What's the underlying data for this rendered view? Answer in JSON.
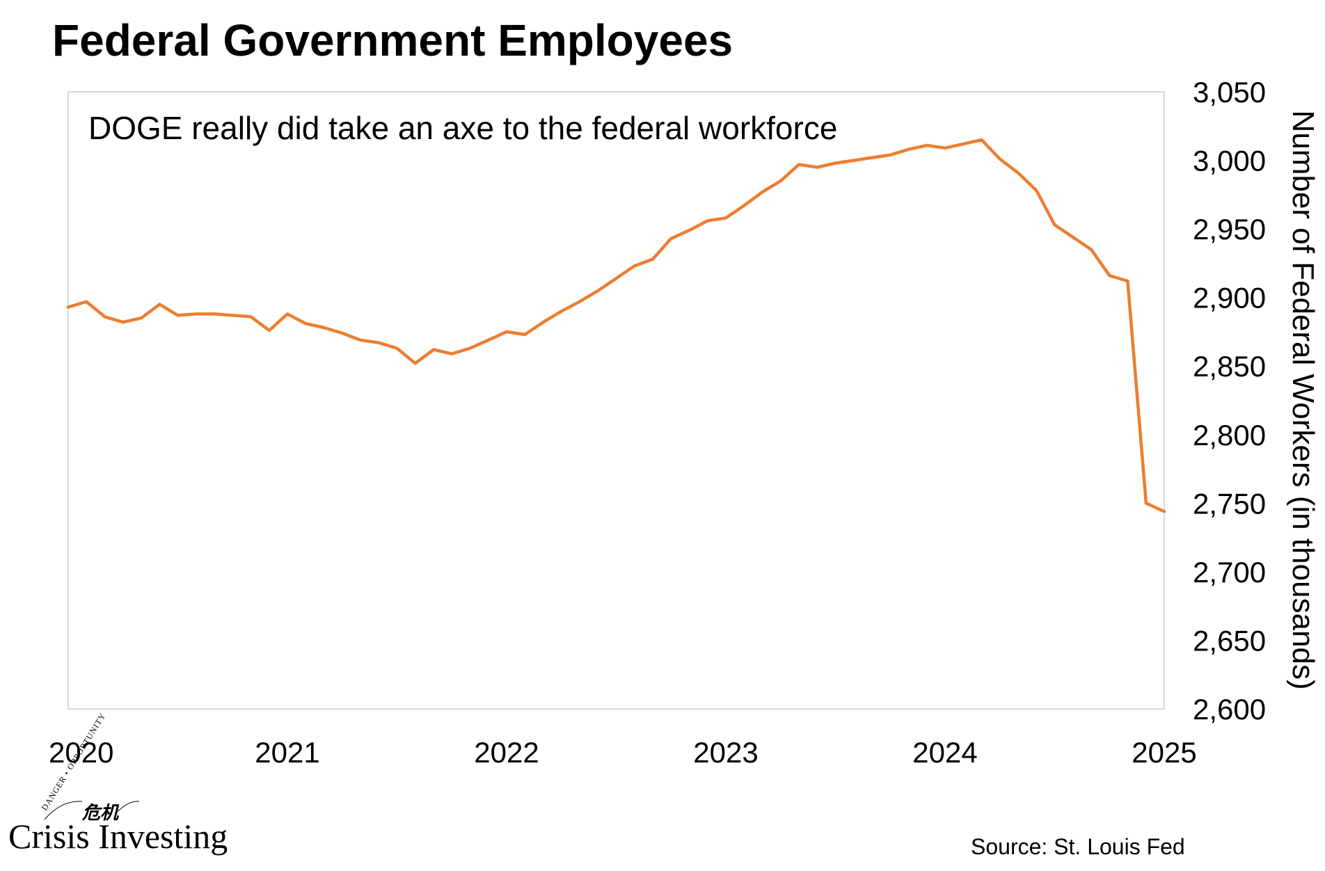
{
  "title": "Federal Government Employees",
  "source": "Source: St. Louis Fed",
  "logo": {
    "name": "Crisis Investing",
    "tagline": "DANGER • OPPORTUNITY",
    "glyphs": "危机"
  },
  "colors": {
    "line": "#ED7D31",
    "frame": "#D9D9D9",
    "text": "#000000"
  },
  "chart_data": {
    "type": "line",
    "title": "Federal Government Employees",
    "annotation": "DOGE really did take an axe to the federal workforce",
    "xlabel": "",
    "ylabel": "Number of Federal Workers (in thousands)",
    "y_axis_side": "right",
    "grid": false,
    "xlim": [
      2020,
      2025
    ],
    "ylim": [
      2600,
      3050
    ],
    "x_ticks": [
      2020,
      2021,
      2022,
      2023,
      2024,
      2025
    ],
    "x_tick_labels": [
      "2020",
      "2021",
      "2022",
      "2023",
      "2024",
      "2025"
    ],
    "y_ticks": [
      2600,
      2650,
      2700,
      2750,
      2800,
      2850,
      2900,
      2950,
      3000,
      3050
    ],
    "y_tick_labels": [
      "2,600",
      "2,650",
      "2,700",
      "2,750",
      "2,800",
      "2,850",
      "2,900",
      "2,950",
      "3,000",
      "3,050"
    ],
    "series": [
      {
        "name": "Federal Government Employees",
        "x": [
          2020.0,
          2020.083,
          2020.167,
          2020.25,
          2020.333,
          2020.417,
          2020.5,
          2020.583,
          2020.667,
          2020.75,
          2020.833,
          2020.917,
          2021.0,
          2021.083,
          2021.167,
          2021.25,
          2021.333,
          2021.417,
          2021.5,
          2021.583,
          2021.667,
          2021.75,
          2021.833,
          2021.917,
          2022.0,
          2022.083,
          2022.167,
          2022.25,
          2022.333,
          2022.417,
          2022.5,
          2022.583,
          2022.667,
          2022.75,
          2022.833,
          2022.917,
          2023.0,
          2023.083,
          2023.167,
          2023.25,
          2023.333,
          2023.417,
          2023.5,
          2023.583,
          2023.667,
          2023.75,
          2023.833,
          2023.917,
          2024.0,
          2024.083,
          2024.167,
          2024.25,
          2024.333,
          2024.417,
          2024.5,
          2024.583,
          2024.667,
          2024.75,
          2024.833,
          2024.917,
          2025.0
        ],
        "values": [
          2893,
          2897,
          2886,
          2882,
          2885,
          2895,
          2887,
          2888,
          2888,
          2887,
          2886,
          2876,
          2888,
          2881,
          2878,
          2874,
          2869,
          2867,
          2863,
          2852,
          2862,
          2859,
          2863,
          2869,
          2875,
          2873,
          2882,
          2890,
          2897,
          2905,
          2914,
          2923,
          2928,
          2943,
          2949,
          2956,
          2958,
          2967,
          2977,
          2985,
          2997,
          2995,
          2998,
          3000,
          3002,
          3004,
          3008,
          3011,
          3009,
          3012,
          3015,
          3001,
          2991,
          2978,
          2953,
          2944,
          2935,
          2916,
          2912,
          2750,
          2744
        ]
      }
    ]
  }
}
